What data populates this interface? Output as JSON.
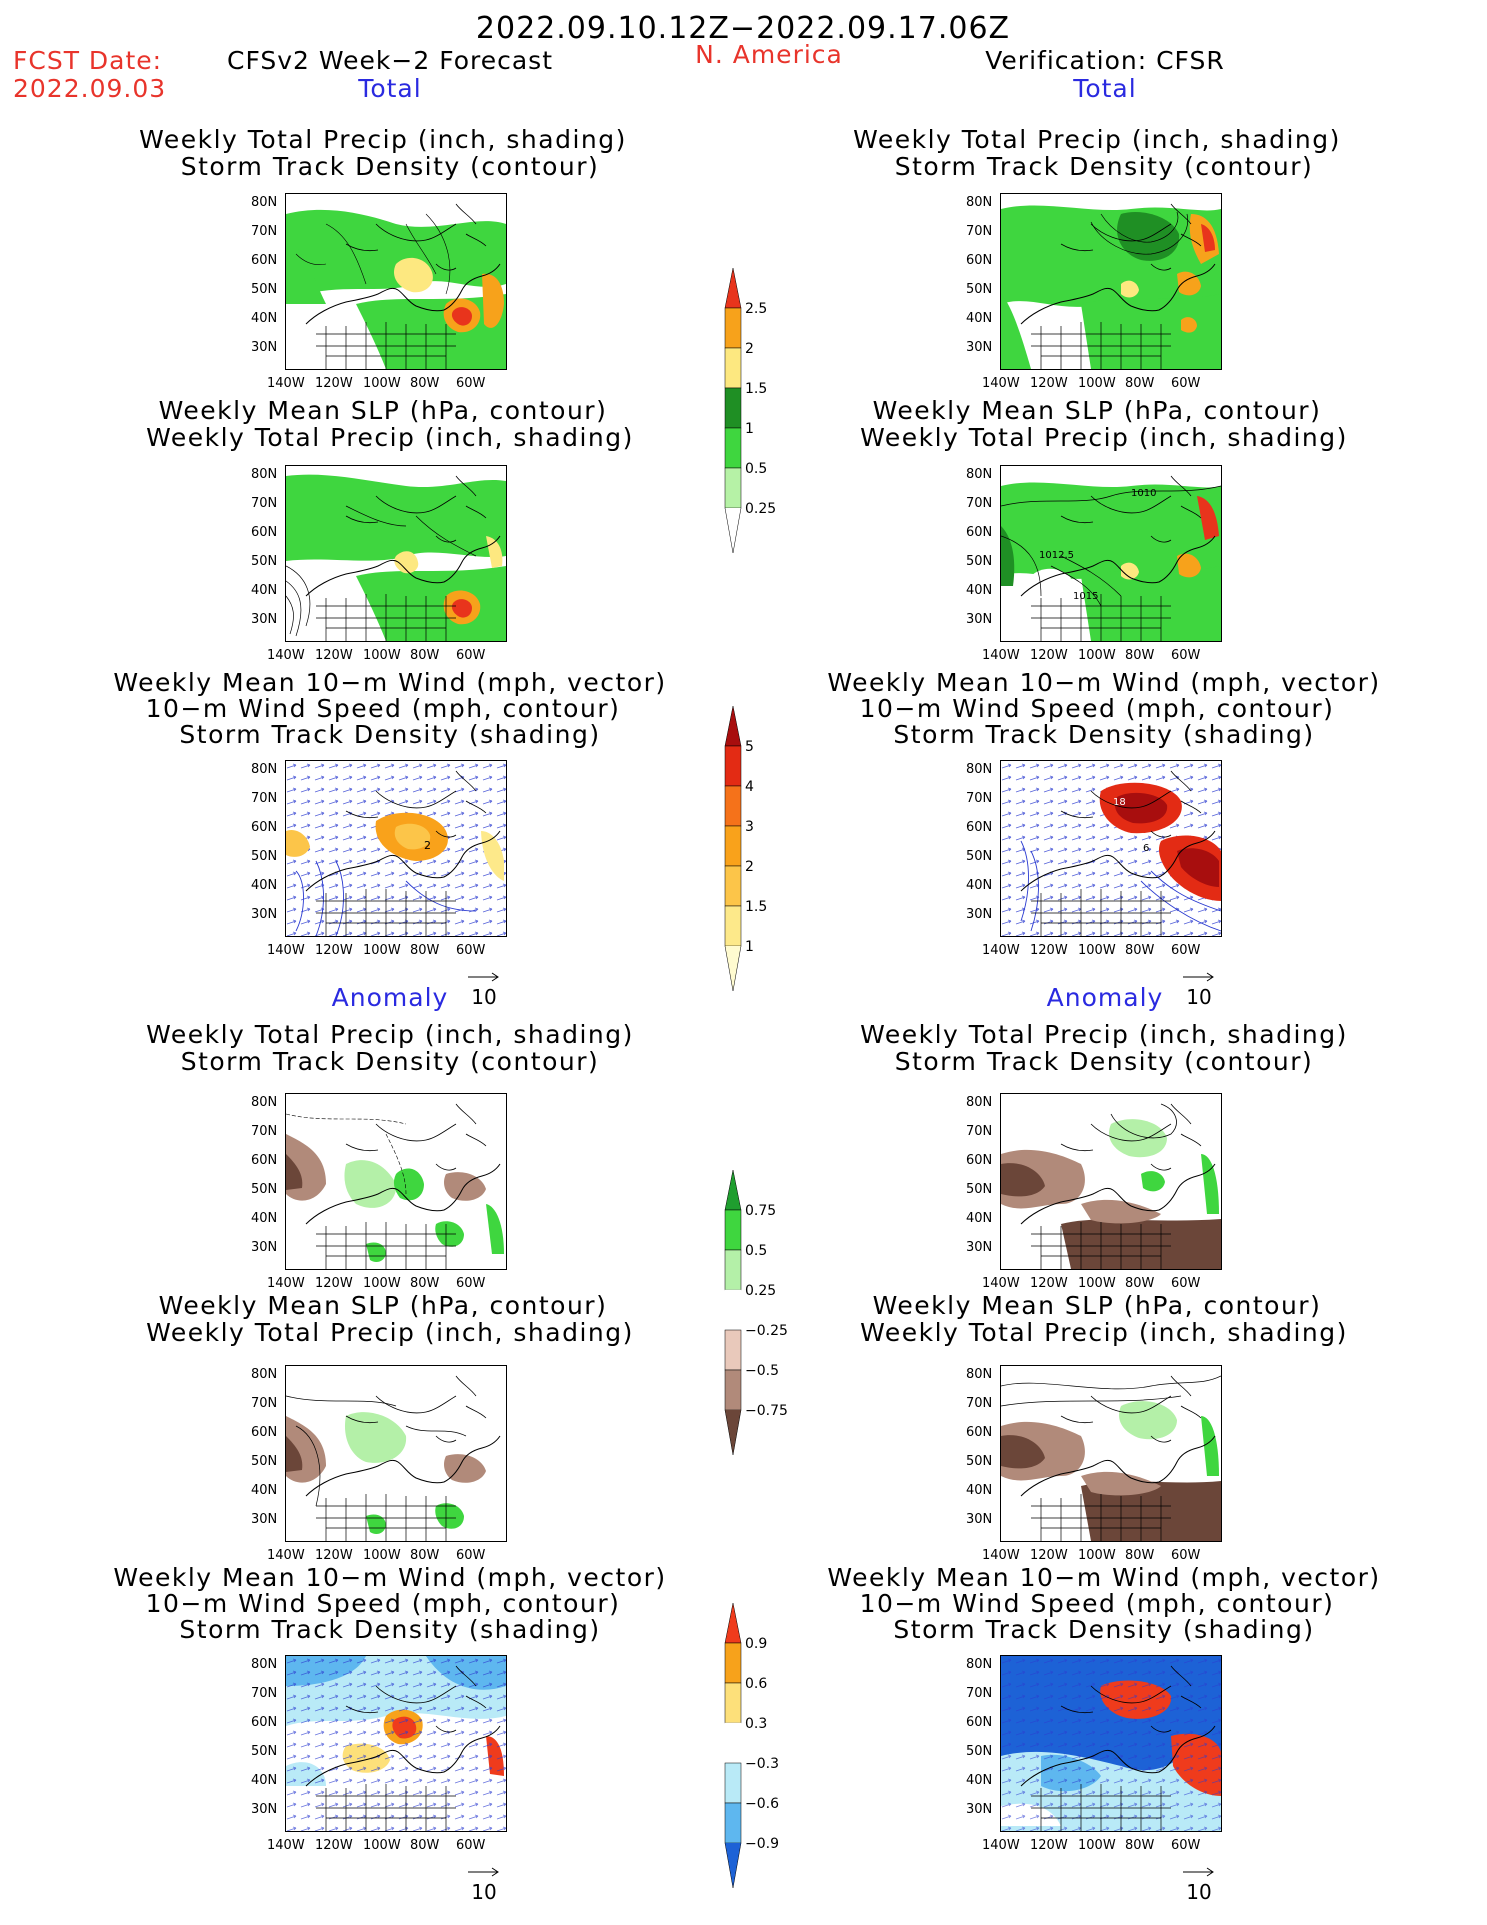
{
  "header": {
    "period": "2022.09.10.12Z−2022.09.17.06Z",
    "fcst_date_label": "FCST Date:",
    "fcst_date_value": "2022.09.03",
    "left_title": "CFSv2 Week−2 Forecast",
    "region": "N. America",
    "right_title": "Verification: CFSR"
  },
  "sections": {
    "total": "Total",
    "anomaly": "Anomaly"
  },
  "panel_titles": {
    "precip_track": [
      "Weekly Total Precip (inch, shading)",
      "Storm Track Density (contour)"
    ],
    "slp_precip": [
      "Weekly Mean SLP (hPa, contour)",
      "Weekly Total Precip (inch, shading)"
    ],
    "wind_track": [
      "Weekly Mean 10−m Wind (mph, vector)",
      "10−m Wind Speed (mph, contour)",
      "Storm Track Density (shading)"
    ]
  },
  "axes": {
    "lat_labels": [
      "80N",
      "70N",
      "60N",
      "50N",
      "40N",
      "30N"
    ],
    "lon_labels": [
      "140W",
      "120W",
      "100W",
      "80W",
      "60W"
    ]
  },
  "vector_reference": "10",
  "contour_labels": {
    "right_slp_total": [
      "1010",
      "1012.5",
      "1015"
    ],
    "left_wind_total": "2",
    "right_wind_total": [
      "18",
      "6"
    ]
  },
  "colorbars": {
    "precip_total": {
      "labels": [
        "2.5",
        "2",
        "1.5",
        "1",
        "0.5",
        "0.25"
      ],
      "colors": [
        "#e8341c",
        "#f7a21b",
        "#fde880",
        "#1f8f24",
        "#3fd63f",
        "#b6f2a6"
      ]
    },
    "track_total": {
      "labels": [
        "5",
        "4",
        "3",
        "2",
        "1.5",
        "1"
      ],
      "colors": [
        "#a80e0e",
        "#e32b14",
        "#f5721a",
        "#f9a21b",
        "#fcc549",
        "#fde98a",
        "#fffbd0"
      ]
    },
    "precip_anom": {
      "labels": [
        "0.75",
        "0.5",
        "0.25",
        "−0.25",
        "−0.5",
        "−0.75"
      ],
      "colors": [
        "#1f9e2f",
        "#3fd63f",
        "#b4f0a8",
        "#ffffff",
        "#e9c9bb",
        "#b18a7a",
        "#6b4639"
      ]
    },
    "track_anom": {
      "labels": [
        "0.9",
        "0.6",
        "0.3",
        "−0.3",
        "−0.6",
        "−0.9"
      ],
      "colors": [
        "#ef3b1c",
        "#f7a21b",
        "#fde07a",
        "#ffffff",
        "#b9eaf7",
        "#5eb7ef",
        "#1d62d6"
      ]
    }
  },
  "colors": {
    "title_red": "#e8342b",
    "title_blue": "#2a2ae0",
    "land_green": "#3fd63f",
    "wind_blue": "#1d4fd6"
  }
}
